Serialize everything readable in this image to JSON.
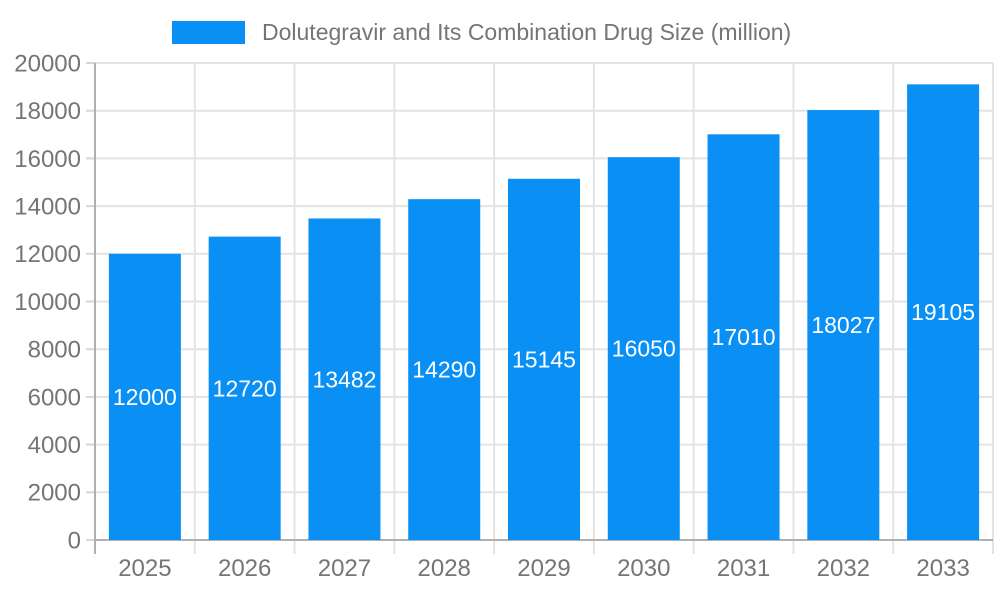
{
  "chart_data": {
    "type": "bar",
    "title": "Dolutegravir and Its Combination Drug Size (million)",
    "categories": [
      "2025",
      "2026",
      "2027",
      "2028",
      "2029",
      "2030",
      "2031",
      "2032",
      "2033"
    ],
    "values": [
      12000,
      12720,
      13482,
      14290,
      15145,
      16050,
      17010,
      18027,
      19105
    ],
    "xlabel": "",
    "ylabel": "",
    "ylim": [
      0,
      20000
    ],
    "ytick_step": 2000,
    "grid": true,
    "legend_position": "top",
    "bar_color": "#0a90f5",
    "value_label_color": "#ffffff",
    "axis_text_color": "#757575",
    "gridline_color": "#e3e3e3",
    "axis_line_color": "#b0b0b0"
  }
}
